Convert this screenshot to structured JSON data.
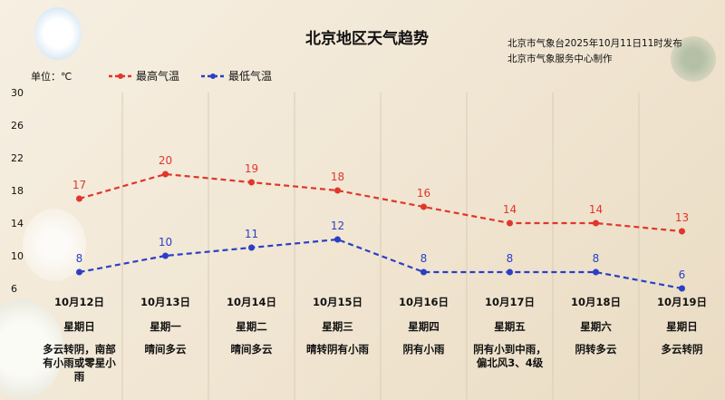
{
  "header": {
    "title": "北京地区天气趋势",
    "publisher_line1": "北京市气象台2025年10月11日11时发布",
    "publisher_line2": "北京市气象服务中心制作",
    "unit_label": "单位：℃"
  },
  "chart_data": {
    "type": "line",
    "title": "北京地区天气趋势",
    "ylim": [
      6,
      30
    ],
    "yticks": [
      "30",
      "26",
      "22",
      "18",
      "14",
      "10",
      "6"
    ],
    "grid": "vertical column separators",
    "legend_position": "top-left",
    "categories": [
      "10月12日",
      "10月13日",
      "10月14日",
      "10月15日",
      "10月16日",
      "10月17日",
      "10月18日",
      "10月19日"
    ],
    "weekdays": [
      "星期日",
      "星期一",
      "星期二",
      "星期三",
      "星期四",
      "星期五",
      "星期六",
      "星期日"
    ],
    "weather": [
      "多云转阴，南部有小雨或零星小雨",
      "晴间多云",
      "晴间多云",
      "晴转阴有小雨",
      "阴有小雨",
      "阴有小到中雨，偏北风3、4级",
      "阴转多云",
      "多云转阴"
    ],
    "series": [
      {
        "name": "最高气温",
        "color": "#e0362b",
        "values": [
          17,
          20,
          19,
          18,
          16,
          14,
          14,
          13
        ]
      },
      {
        "name": "最低气温",
        "color": "#2b3fc4",
        "values": [
          8,
          10,
          11,
          12,
          8,
          8,
          8,
          6
        ]
      }
    ]
  }
}
